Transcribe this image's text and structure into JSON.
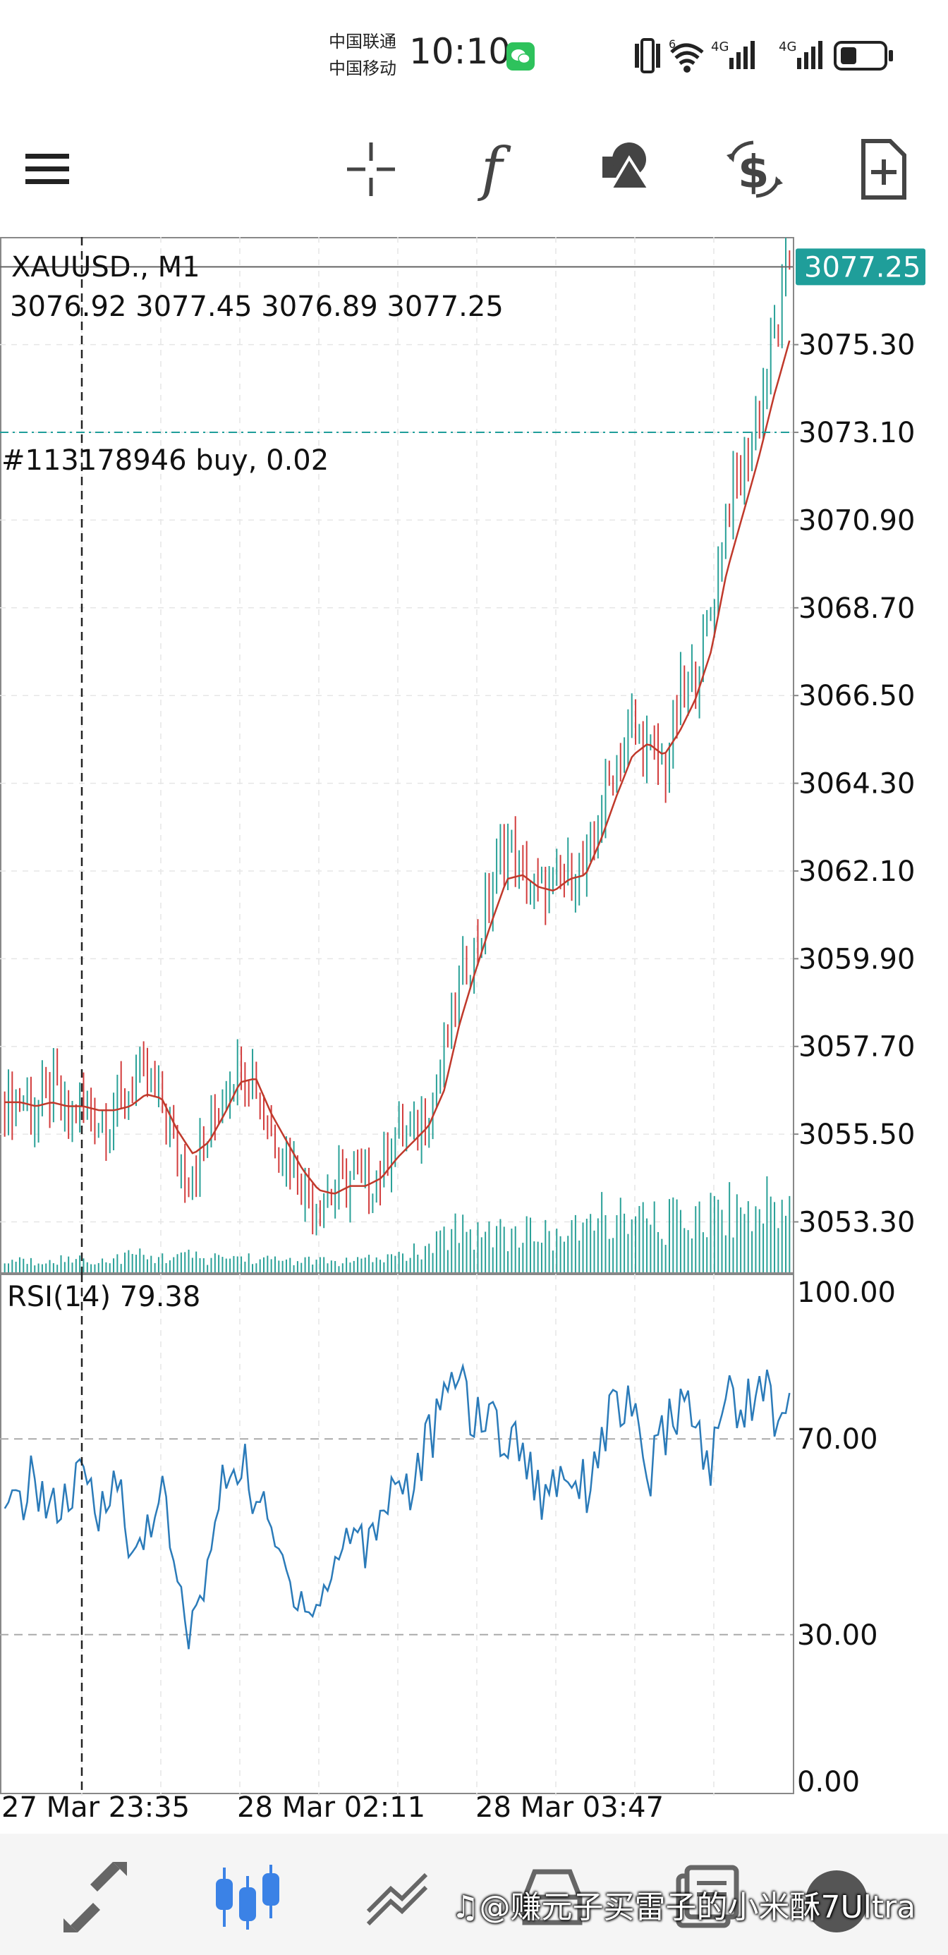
{
  "status_bar": {
    "carrier_1": "中国联通",
    "carrier_2": "中国移动",
    "time": "10:10",
    "network_1": "4G",
    "network_2": "4G",
    "wifi_badge": "6"
  },
  "toolbar": {
    "menu_icon": "hamburger-icon",
    "crosshair_icon": "crosshair-icon",
    "indicators_icon": "function-icon",
    "objects_icon": "shapes-icon",
    "trade_icon": "dollar-refresh-icon",
    "new_order_icon": "new-document-icon"
  },
  "chart": {
    "symbol_title": "XAUUSD., M1",
    "ohlc": "3076.92 3077.45 3076.89 3077.25",
    "order_line_label": "#113178946 buy, 0.02",
    "order_line_price": 3073.1,
    "current_price_label": "3077.25",
    "price_ticks": [
      "3075.30",
      "3073.10",
      "3070.90",
      "3068.70",
      "3066.50",
      "3064.30",
      "3062.10",
      "3059.90",
      "3057.70",
      "3055.50",
      "3053.30"
    ],
    "rsi_label": "RSI(14) 79.38",
    "rsi_ticks": [
      "100.00",
      "70.00",
      "30.00",
      "0.00"
    ],
    "time_ticks": [
      "27 Mar 23:35",
      "28 Mar 02:11",
      "28 Mar 03:47"
    ],
    "colors": {
      "bull": "#2aa198",
      "bear": "#d23c3c",
      "ma": "#c0392b",
      "rsi": "#2b7bb9",
      "price_badge": "#1f9e9a"
    }
  },
  "chart_data": {
    "type": "candlestick",
    "symbol": "XAUUSD.",
    "timeframe": "M1",
    "ylim": [
      3052.0,
      3078.0
    ],
    "close_path": [
      3056.2,
      3056.5,
      3056.0,
      3056.6,
      3055.9,
      3056.3,
      3055.8,
      3056.1,
      3056.7,
      3057.0,
      3056.4,
      3054.8,
      3054.6,
      3055.5,
      3056.6,
      3057.4,
      3056.8,
      3055.5,
      3055.0,
      3054.2,
      3053.9,
      3054.0,
      3054.4,
      3054.1,
      3054.6,
      3055.6,
      3055.4,
      3056.0,
      3057.5,
      3059.5,
      3060.1,
      3061.6,
      3062.9,
      3062.0,
      3061.5,
      3061.6,
      3062.1,
      3062.0,
      3063.6,
      3064.9,
      3065.8,
      3065.1,
      3064.6,
      3066.4,
      3067.0,
      3068.6,
      3071.2,
      3072.1,
      3073.6,
      3075.5,
      3077.25
    ],
    "ma_path": [
      3056.3,
      3056.3,
      3056.2,
      3056.3,
      3056.2,
      3056.2,
      3056.1,
      3056.1,
      3056.2,
      3056.5,
      3056.4,
      3055.6,
      3055.0,
      3055.3,
      3056.0,
      3056.8,
      3056.9,
      3056.0,
      3055.3,
      3054.6,
      3054.1,
      3054.0,
      3054.2,
      3054.2,
      3054.4,
      3054.9,
      3055.3,
      3055.7,
      3056.6,
      3058.3,
      3059.6,
      3060.8,
      3061.9,
      3062.0,
      3061.7,
      3061.6,
      3061.9,
      3062.0,
      3062.9,
      3064.0,
      3065.0,
      3065.3,
      3065.0,
      3065.6,
      3066.4,
      3067.6,
      3069.6,
      3071.0,
      3072.4,
      3074.0,
      3075.4
    ],
    "volume_relative": [
      0.1,
      0.12,
      0.1,
      0.15,
      0.12,
      0.14,
      0.11,
      0.13,
      0.18,
      0.16,
      0.14,
      0.2,
      0.15,
      0.13,
      0.16,
      0.15,
      0.14,
      0.12,
      0.13,
      0.11,
      0.12,
      0.1,
      0.11,
      0.12,
      0.14,
      0.16,
      0.2,
      0.22,
      0.35,
      0.5,
      0.4,
      0.45,
      0.38,
      0.42,
      0.36,
      0.4,
      0.38,
      0.45,
      0.6,
      0.55,
      0.5,
      0.52,
      0.48,
      0.58,
      0.6,
      0.62,
      0.66,
      0.6,
      0.72,
      0.65,
      0.7
    ],
    "rsi_ylim": [
      0,
      100
    ],
    "rsi_levels": [
      30,
      70
    ],
    "rsi_values": [
      52,
      58,
      62,
      55,
      57,
      62,
      54,
      66,
      44,
      52,
      60,
      38,
      30,
      45,
      62,
      66,
      58,
      50,
      42,
      38,
      35,
      44,
      52,
      48,
      56,
      62,
      60,
      70,
      76,
      86,
      72,
      76,
      68,
      70,
      58,
      62,
      64,
      60,
      70,
      78,
      74,
      62,
      70,
      78,
      72,
      64,
      80,
      76,
      82,
      76,
      79.38
    ],
    "current_price": 3077.25,
    "order_price": 3073.1
  },
  "bottom_nav": {
    "items": [
      "quotes-icon",
      "chart-icon",
      "trade-icon",
      "history-icon",
      "messages-icon",
      "settings-icon"
    ],
    "active": 1
  },
  "watermark": "♫@赚元子买雷子的小米酥7Ultra"
}
